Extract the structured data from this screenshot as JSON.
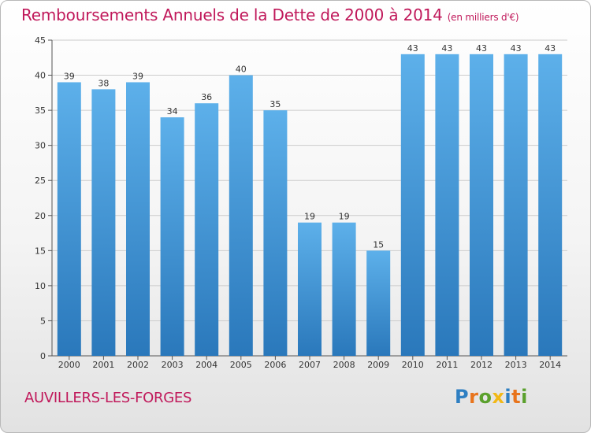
{
  "chart_data": {
    "type": "bar",
    "title": "Remboursements Annuels de la Dette de 2000 à 2014",
    "subtitle": "(en milliers d'€)",
    "categories": [
      "2000",
      "2001",
      "2002",
      "2003",
      "2004",
      "2005",
      "2006",
      "2007",
      "2008",
      "2009",
      "2010",
      "2011",
      "2012",
      "2013",
      "2014"
    ],
    "values": [
      39,
      38,
      39,
      34,
      36,
      40,
      35,
      19,
      19,
      15,
      43,
      43,
      43,
      43,
      43
    ],
    "yticks": [
      0,
      5,
      10,
      15,
      20,
      25,
      30,
      35,
      40,
      45
    ],
    "ylim": [
      0,
      45
    ],
    "xlabel": "",
    "ylabel": "",
    "grid": true
  },
  "footer": {
    "place_name": "AUVILLERS-LES-FORGES",
    "brand": "Proxiti"
  },
  "colors": {
    "title": "#c0185a",
    "bar_top": "#5db0ea",
    "bar_bottom": "#2a78bb",
    "grid": "#cccccc",
    "logo_letters": [
      "#2e7fc2",
      "#e8741c",
      "#5aa02c",
      "#f2b817",
      "#2e7fc2",
      "#e8741c",
      "#5aa02c"
    ]
  }
}
